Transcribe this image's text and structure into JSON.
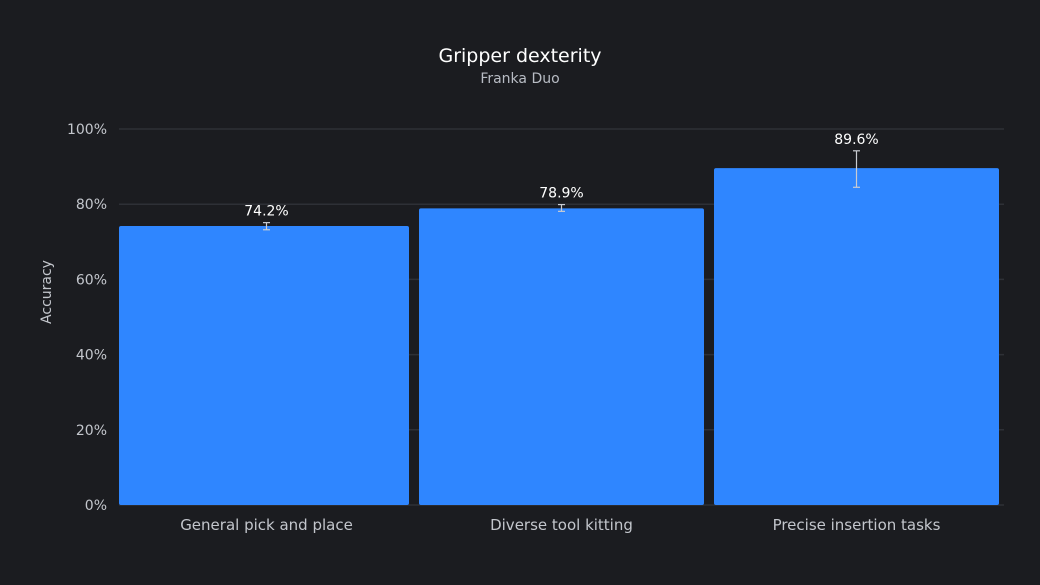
{
  "chart_data": {
    "type": "bar",
    "title": "Gripper dexterity",
    "subtitle": "Franka Duo",
    "xlabel": "",
    "ylabel": "Accuracy",
    "categories": [
      "General pick and place",
      "Diverse tool kitting",
      "Precise insertion tasks"
    ],
    "series": [
      {
        "values": [
          74.2,
          78.9,
          89.6
        ],
        "error_low": [
          73.2,
          78.1,
          84.5
        ],
        "error_high": [
          75.1,
          79.9,
          94.2
        ],
        "color": "#2f86ff"
      }
    ],
    "data_labels": [
      "74.2%",
      "78.9%",
      "89.6%"
    ],
    "ylim": [
      0,
      100
    ],
    "yticks": [
      0,
      20,
      40,
      60,
      80,
      100
    ],
    "ytick_labels": [
      "0%",
      "20%",
      "40%",
      "60%",
      "80%",
      "100%"
    ],
    "grid": true,
    "legend": "none",
    "colors": {
      "background": "#1b1c20",
      "grid": "#2e3036",
      "error_bar": "#c9ccd2"
    }
  }
}
